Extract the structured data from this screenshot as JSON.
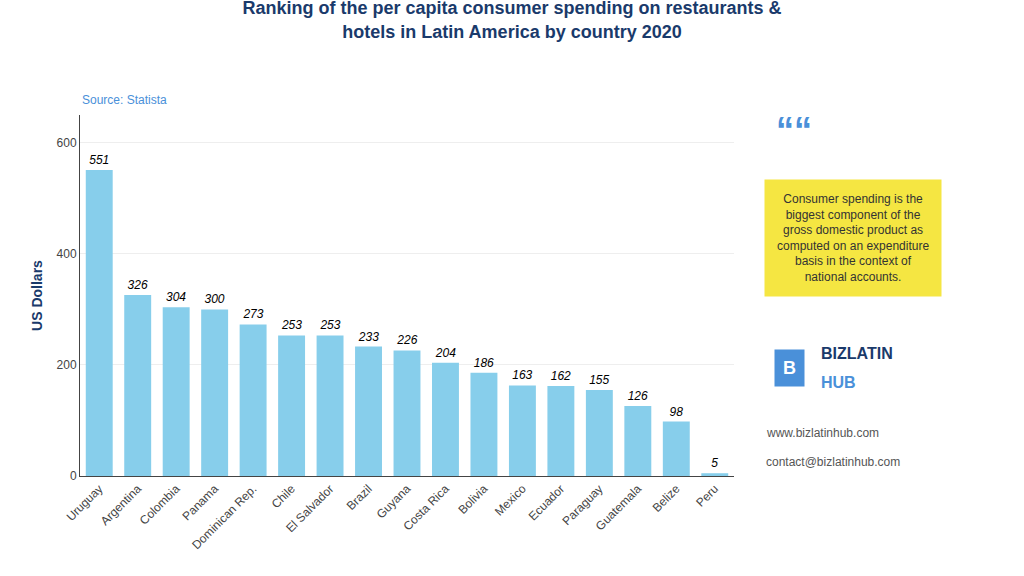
{
  "chart_data": {
    "type": "bar",
    "title": "Ranking of the per capita consumer spending on restaurants &\nhotels in Latin America by country 2020",
    "ylabel": "US Dollars",
    "categories": [
      "Uruguay",
      "Argentina",
      "Colombia",
      "Panama",
      "Dominican Rep.",
      "Chile",
      "El Salvador",
      "Brazil",
      "Guyana",
      "Costa Rica",
      "Bolivia",
      "Mexico",
      "Ecuador",
      "Paraguay",
      "Guatemala",
      "Belize",
      "Peru"
    ],
    "values": [
      551,
      326,
      304,
      300,
      273,
      253,
      253,
      233,
      226,
      204,
      186,
      163,
      162,
      155,
      126,
      98,
      5
    ],
    "color": "#87CEEB",
    "ylim": [
      0,
      650
    ],
    "yticks": [
      0,
      200,
      400,
      600
    ],
    "grid": true,
    "data_labels": true,
    "annotations": [
      "Source: Statista",
      "““",
      "Consumer spending is the\nbiggest component of the\ngross domestic product as\ncomputed on an expenditure\nbasis in the context of\nnational accounts.",
      "B",
      "BIZLATIN",
      "HUB",
      "www.bizlatinhub.com",
      "contact@bizlatinhub.com"
    ]
  }
}
